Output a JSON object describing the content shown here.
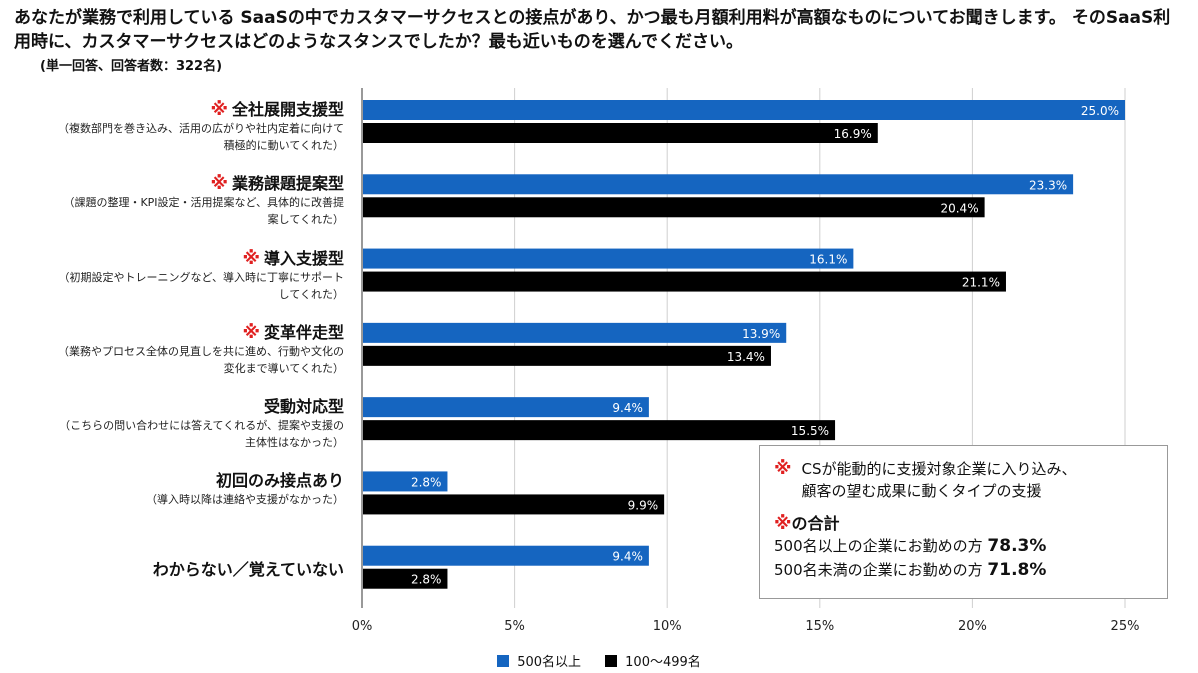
{
  "header": {
    "title": "あなたが業務で利用している SaaSの中でカスタマーサクセスとの接点があり、かつ最も月額利用料が高額なものについてお聞きします。 そのSaaS利用時に、カスタマーサクセスはどのようなスタンスでしたか？最も近いものを選んでください。",
    "subtitle": "(単一回答、回答者数：322名)"
  },
  "mark_symbol": "※",
  "chart_data": {
    "type": "bar",
    "orientation": "horizontal",
    "categories": [
      "全社展開支援型",
      "業務課題提案型",
      "導入支援型",
      "変革伴走型",
      "受動対応型",
      "初回のみ接点あり",
      "わからない／覚えていない"
    ],
    "category_marked": [
      true,
      true,
      true,
      true,
      false,
      false,
      false
    ],
    "category_descriptions": [
      "（複数部門を巻き込み、活用の広がりや社内定着に向けて積極的に動いてくれた）",
      "（課題の整理・KPI設定・活用提案など、具体的に改善提案してくれた）",
      "（初期設定やトレーニングなど、導入時に丁寧にサポートしてくれた）",
      "（業務やプロセス全体の見直しを共に進め、行動や文化の変化まで導いてくれた）",
      "（こちらの問い合わせには答えてくれるが、提案や支援の主体性はなかった）",
      "（導入時以降は連絡や支援がなかった）",
      ""
    ],
    "series": [
      {
        "name": "500名以上",
        "color": "#1565c0",
        "values": [
          25.0,
          23.3,
          16.1,
          13.9,
          9.4,
          2.8,
          9.4
        ],
        "labels": [
          "25.0%",
          "23.3%",
          "16.1%",
          "13.9%",
          "9.4%",
          "2.8%",
          "9.4%"
        ]
      },
      {
        "name": "100〜499名",
        "color": "#000000",
        "values": [
          16.9,
          20.4,
          21.1,
          13.4,
          15.5,
          9.9,
          2.8
        ],
        "labels": [
          "16.9%",
          "20.4%",
          "21.1%",
          "13.4%",
          "15.5%",
          "9.9%",
          "2.8%"
        ]
      }
    ],
    "xlim": [
      0,
      25
    ],
    "xticks": [
      0,
      5,
      10,
      15,
      20,
      25
    ],
    "xtick_labels": [
      "0%",
      "5%",
      "10%",
      "15%",
      "20%",
      "25%"
    ],
    "grid": true,
    "legend_position": "bottom"
  },
  "note": {
    "definition_line1": "CSが能動的に支援対象企業に入り込み、",
    "definition_line2": "顧客の望む成果に動くタイプの支援",
    "sum_title": "の合計",
    "large_label": "500名以上の企業にお勤めの方",
    "large_value": "78.3%",
    "small_label": "500名未満の企業にお勤めの方",
    "small_value": "71.8%"
  }
}
